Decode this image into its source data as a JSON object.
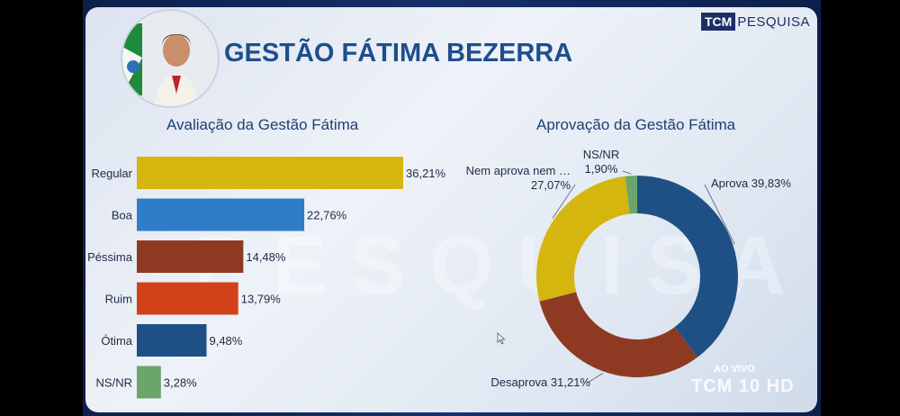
{
  "header": {
    "title": "GESTÃO FÁTIMA BEZERRA",
    "logo_prefix": "TCM",
    "logo_suffix": "PESQUISA"
  },
  "watermark": "PESQUISA",
  "broadcast": {
    "live_label": "AO VIVO",
    "channel": "TCM 10 HD"
  },
  "colors": {
    "regular": "#d4b60e",
    "boa": "#2e7dc8",
    "pessima": "#8e3a22",
    "ruim": "#d2421a",
    "otima": "#1f5085",
    "nsnr_bar": "#6aa66a",
    "aprova": "#1f5085",
    "desaprova": "#8e3a22",
    "nem": "#d4b60e",
    "nsnr_pie": "#6aa66a"
  },
  "chart_data": [
    {
      "type": "bar",
      "orientation": "horizontal",
      "title": "Avaliação da Gestão Fátima",
      "categories": [
        "Regular",
        "Boa",
        "Péssima",
        "Ruim",
        "Ótima",
        "NS/NR"
      ],
      "values": [
        36.21,
        22.76,
        14.48,
        13.79,
        9.48,
        3.28
      ],
      "labels": [
        "36,21%",
        "22,76%",
        "14,48%",
        "13,79%",
        "9,48%",
        "3,28%"
      ],
      "xlim": [
        0,
        40
      ],
      "grid": false,
      "legend": "none"
    },
    {
      "type": "pie",
      "donut": true,
      "title": "Aprovação da Gestão Fátima",
      "categories": [
        "Aprova",
        "Desaprova",
        "Nem aprova nem …",
        "NS/NR"
      ],
      "values": [
        39.83,
        31.21,
        27.07,
        1.9
      ],
      "labels": [
        "39,83%",
        "31,21%",
        "27,07%",
        "1,90%"
      ],
      "legend": "none"
    }
  ]
}
